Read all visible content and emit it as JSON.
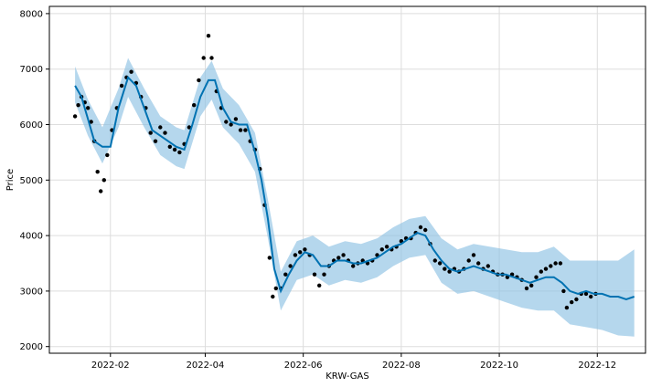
{
  "chart_data": {
    "type": "scatter",
    "title": "",
    "xlabel": "KRW-GAS",
    "ylabel": "Price",
    "grid": true,
    "x_ticks": [
      "2022-02",
      "2022-04",
      "2022-06",
      "2022-08",
      "2022-10",
      "2022-12"
    ],
    "y_ticks": [
      "2000",
      "3000",
      "4000",
      "5000",
      "6000",
      "7000",
      "8000"
    ],
    "xlim": [
      "2021-12-25",
      "2022-12-31"
    ],
    "ylim": [
      1880,
      8130
    ],
    "colors": {
      "points": "#000000",
      "forecast": "#0072B2",
      "interval": "#8ec2e4",
      "grid": "#dddddd"
    },
    "series": [
      {
        "role": "observed",
        "points": [
          [
            "2022-01-10",
            6150
          ],
          [
            "2022-01-12",
            6350
          ],
          [
            "2022-01-14",
            6500
          ],
          [
            "2022-01-16",
            6400
          ],
          [
            "2022-01-18",
            6300
          ],
          [
            "2022-01-20",
            6050
          ],
          [
            "2022-01-22",
            5700
          ],
          [
            "2022-01-24",
            5150
          ],
          [
            "2022-01-26",
            4800
          ],
          [
            "2022-01-28",
            5000
          ],
          [
            "2022-01-30",
            5450
          ],
          [
            "2022-02-02",
            5900
          ],
          [
            "2022-02-05",
            6300
          ],
          [
            "2022-02-08",
            6700
          ],
          [
            "2022-02-11",
            6850
          ],
          [
            "2022-02-14",
            6950
          ],
          [
            "2022-02-17",
            6750
          ],
          [
            "2022-02-20",
            6500
          ],
          [
            "2022-02-23",
            6300
          ],
          [
            "2022-02-26",
            5850
          ],
          [
            "2022-03-01",
            5700
          ],
          [
            "2022-03-04",
            5950
          ],
          [
            "2022-03-07",
            5850
          ],
          [
            "2022-03-10",
            5600
          ],
          [
            "2022-03-13",
            5550
          ],
          [
            "2022-03-16",
            5500
          ],
          [
            "2022-03-19",
            5650
          ],
          [
            "2022-03-22",
            5950
          ],
          [
            "2022-03-25",
            6350
          ],
          [
            "2022-03-28",
            6800
          ],
          [
            "2022-03-31",
            7200
          ],
          [
            "2022-04-03",
            7600
          ],
          [
            "2022-04-05",
            7200
          ],
          [
            "2022-04-08",
            6600
          ],
          [
            "2022-04-11",
            6300
          ],
          [
            "2022-04-14",
            6050
          ],
          [
            "2022-04-17",
            6000
          ],
          [
            "2022-04-20",
            6100
          ],
          [
            "2022-04-23",
            5900
          ],
          [
            "2022-04-26",
            5900
          ],
          [
            "2022-04-29",
            5700
          ],
          [
            "2022-05-02",
            5550
          ],
          [
            "2022-05-05",
            5200
          ],
          [
            "2022-05-08",
            4550
          ],
          [
            "2022-05-11",
            3600
          ],
          [
            "2022-05-13",
            2900
          ],
          [
            "2022-05-15",
            3050
          ],
          [
            "2022-05-18",
            3050
          ],
          [
            "2022-05-21",
            3300
          ],
          [
            "2022-05-24",
            3450
          ],
          [
            "2022-05-27",
            3650
          ],
          [
            "2022-05-30",
            3700
          ],
          [
            "2022-06-02",
            3750
          ],
          [
            "2022-06-05",
            3650
          ],
          [
            "2022-06-08",
            3300
          ],
          [
            "2022-06-11",
            3100
          ],
          [
            "2022-06-14",
            3300
          ],
          [
            "2022-06-17",
            3450
          ],
          [
            "2022-06-20",
            3550
          ],
          [
            "2022-06-23",
            3600
          ],
          [
            "2022-06-26",
            3650
          ],
          [
            "2022-06-29",
            3550
          ],
          [
            "2022-07-02",
            3450
          ],
          [
            "2022-07-05",
            3500
          ],
          [
            "2022-07-08",
            3550
          ],
          [
            "2022-07-11",
            3500
          ],
          [
            "2022-07-14",
            3550
          ],
          [
            "2022-07-17",
            3650
          ],
          [
            "2022-07-20",
            3750
          ],
          [
            "2022-07-23",
            3800
          ],
          [
            "2022-07-26",
            3750
          ],
          [
            "2022-07-29",
            3800
          ],
          [
            "2022-08-01",
            3900
          ],
          [
            "2022-08-04",
            3950
          ],
          [
            "2022-08-07",
            3950
          ],
          [
            "2022-08-10",
            4050
          ],
          [
            "2022-08-13",
            4150
          ],
          [
            "2022-08-16",
            4100
          ],
          [
            "2022-08-19",
            3850
          ],
          [
            "2022-08-22",
            3550
          ],
          [
            "2022-08-25",
            3500
          ],
          [
            "2022-08-28",
            3400
          ],
          [
            "2022-08-31",
            3350
          ],
          [
            "2022-09-03",
            3400
          ],
          [
            "2022-09-06",
            3350
          ],
          [
            "2022-09-09",
            3400
          ],
          [
            "2022-09-12",
            3550
          ],
          [
            "2022-09-15",
            3650
          ],
          [
            "2022-09-18",
            3500
          ],
          [
            "2022-09-21",
            3400
          ],
          [
            "2022-09-24",
            3450
          ],
          [
            "2022-09-27",
            3350
          ],
          [
            "2022-09-30",
            3300
          ],
          [
            "2022-10-03",
            3300
          ],
          [
            "2022-10-06",
            3250
          ],
          [
            "2022-10-09",
            3300
          ],
          [
            "2022-10-12",
            3250
          ],
          [
            "2022-10-15",
            3200
          ],
          [
            "2022-10-18",
            3050
          ],
          [
            "2022-10-21",
            3100
          ],
          [
            "2022-10-24",
            3250
          ],
          [
            "2022-10-27",
            3350
          ],
          [
            "2022-10-30",
            3400
          ],
          [
            "2022-11-02",
            3450
          ],
          [
            "2022-11-05",
            3500
          ],
          [
            "2022-11-08",
            3500
          ],
          [
            "2022-11-10",
            3000
          ],
          [
            "2022-11-12",
            2700
          ],
          [
            "2022-11-15",
            2800
          ],
          [
            "2022-11-18",
            2850
          ],
          [
            "2022-11-21",
            2950
          ],
          [
            "2022-11-24",
            2950
          ],
          [
            "2022-11-27",
            2900
          ],
          [
            "2022-11-30",
            2950
          ]
        ]
      },
      {
        "role": "forecast",
        "points": [
          [
            "2022-01-10",
            6700
          ],
          [
            "2022-01-14",
            6500
          ],
          [
            "2022-01-18",
            6100
          ],
          [
            "2022-01-22",
            5700
          ],
          [
            "2022-01-27",
            5600
          ],
          [
            "2022-02-01",
            5600
          ],
          [
            "2022-02-06",
            6300
          ],
          [
            "2022-02-12",
            6850
          ],
          [
            "2022-02-17",
            6700
          ],
          [
            "2022-02-22",
            6300
          ],
          [
            "2022-02-27",
            5900
          ],
          [
            "2022-03-04",
            5800
          ],
          [
            "2022-03-09",
            5700
          ],
          [
            "2022-03-14",
            5600
          ],
          [
            "2022-03-19",
            5550
          ],
          [
            "2022-03-24",
            6000
          ],
          [
            "2022-03-29",
            6500
          ],
          [
            "2022-04-03",
            6800
          ],
          [
            "2022-04-07",
            6800
          ],
          [
            "2022-04-12",
            6300
          ],
          [
            "2022-04-17",
            6050
          ],
          [
            "2022-04-22",
            6000
          ],
          [
            "2022-04-27",
            6000
          ],
          [
            "2022-05-02",
            5500
          ],
          [
            "2022-05-06",
            5000
          ],
          [
            "2022-05-10",
            4300
          ],
          [
            "2022-05-14",
            3400
          ],
          [
            "2022-05-18",
            3000
          ],
          [
            "2022-05-23",
            3300
          ],
          [
            "2022-05-28",
            3550
          ],
          [
            "2022-06-02",
            3700
          ],
          [
            "2022-06-07",
            3650
          ],
          [
            "2022-06-12",
            3450
          ],
          [
            "2022-06-17",
            3450
          ],
          [
            "2022-06-22",
            3550
          ],
          [
            "2022-06-27",
            3550
          ],
          [
            "2022-07-02",
            3500
          ],
          [
            "2022-07-07",
            3500
          ],
          [
            "2022-07-12",
            3550
          ],
          [
            "2022-07-17",
            3600
          ],
          [
            "2022-07-22",
            3700
          ],
          [
            "2022-07-27",
            3800
          ],
          [
            "2022-08-01",
            3850
          ],
          [
            "2022-08-06",
            3950
          ],
          [
            "2022-08-11",
            4050
          ],
          [
            "2022-08-16",
            4000
          ],
          [
            "2022-08-21",
            3750
          ],
          [
            "2022-08-26",
            3550
          ],
          [
            "2022-08-31",
            3400
          ],
          [
            "2022-09-05",
            3350
          ],
          [
            "2022-09-10",
            3400
          ],
          [
            "2022-09-15",
            3450
          ],
          [
            "2022-09-20",
            3400
          ],
          [
            "2022-09-25",
            3350
          ],
          [
            "2022-09-30",
            3300
          ],
          [
            "2022-10-05",
            3300
          ],
          [
            "2022-10-10",
            3250
          ],
          [
            "2022-10-15",
            3200
          ],
          [
            "2022-10-20",
            3150
          ],
          [
            "2022-10-25",
            3200
          ],
          [
            "2022-10-30",
            3250
          ],
          [
            "2022-11-04",
            3250
          ],
          [
            "2022-11-09",
            3150
          ],
          [
            "2022-11-14",
            3000
          ],
          [
            "2022-11-19",
            2950
          ],
          [
            "2022-11-24",
            3000
          ],
          [
            "2022-11-29",
            2950
          ],
          [
            "2022-12-04",
            2950
          ],
          [
            "2022-12-09",
            2900
          ],
          [
            "2022-12-14",
            2900
          ],
          [
            "2022-12-19",
            2850
          ],
          [
            "2022-12-24",
            2900
          ]
        ]
      },
      {
        "role": "interval",
        "points": [
          [
            "2022-01-10",
            6400,
            7050
          ],
          [
            "2022-01-18",
            5800,
            6450
          ],
          [
            "2022-01-27",
            5300,
            5950
          ],
          [
            "2022-02-06",
            5950,
            6650
          ],
          [
            "2022-02-12",
            6500,
            7200
          ],
          [
            "2022-02-22",
            5950,
            6650
          ],
          [
            "2022-03-04",
            5450,
            6150
          ],
          [
            "2022-03-14",
            5250,
            5950
          ],
          [
            "2022-03-19",
            5200,
            5900
          ],
          [
            "2022-03-29",
            6150,
            6850
          ],
          [
            "2022-04-05",
            6450,
            7150
          ],
          [
            "2022-04-12",
            5950,
            6650
          ],
          [
            "2022-04-22",
            5650,
            6350
          ],
          [
            "2022-05-02",
            5150,
            5850
          ],
          [
            "2022-05-10",
            3950,
            4650
          ],
          [
            "2022-05-18",
            2650,
            3350
          ],
          [
            "2022-05-28",
            3200,
            3900
          ],
          [
            "2022-06-07",
            3300,
            4000
          ],
          [
            "2022-06-17",
            3100,
            3800
          ],
          [
            "2022-06-27",
            3200,
            3900
          ],
          [
            "2022-07-07",
            3150,
            3850
          ],
          [
            "2022-07-17",
            3250,
            3950
          ],
          [
            "2022-07-27",
            3450,
            4150
          ],
          [
            "2022-08-06",
            3600,
            4300
          ],
          [
            "2022-08-16",
            3650,
            4350
          ],
          [
            "2022-08-26",
            3150,
            3950
          ],
          [
            "2022-09-05",
            2950,
            3750
          ],
          [
            "2022-09-15",
            3000,
            3850
          ],
          [
            "2022-09-25",
            2900,
            3800
          ],
          [
            "2022-10-05",
            2800,
            3750
          ],
          [
            "2022-10-15",
            2700,
            3700
          ],
          [
            "2022-10-25",
            2650,
            3700
          ],
          [
            "2022-11-04",
            2650,
            3800
          ],
          [
            "2022-11-14",
            2400,
            3550
          ],
          [
            "2022-11-24",
            2350,
            3550
          ],
          [
            "2022-12-04",
            2300,
            3550
          ],
          [
            "2022-12-14",
            2200,
            3550
          ],
          [
            "2022-12-24",
            2180,
            3750
          ]
        ]
      }
    ]
  }
}
